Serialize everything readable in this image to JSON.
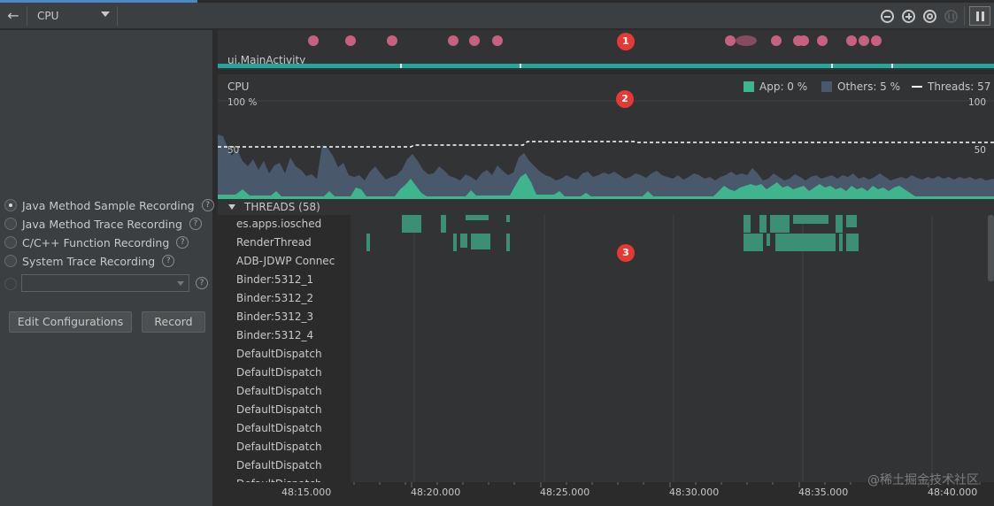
{
  "toolbar": {
    "back_icon": "arrow-left-icon",
    "profiler_select": "CPU",
    "zoom_out_icon": "minus-circle-icon",
    "zoom_in_icon": "plus-circle-icon",
    "reset_zoom_icon": "reset-circle-icon",
    "live_icon": "pause-circle-icon",
    "pause_icon": "pause-icon"
  },
  "left_panel": {
    "recording_options": [
      {
        "label": "Java Method Sample Recording",
        "selected": true
      },
      {
        "label": "Java Method Trace Recording",
        "selected": false
      },
      {
        "label": "C/C++ Function Recording",
        "selected": false
      },
      {
        "label": "System Trace Recording",
        "selected": false
      }
    ],
    "custom_config_value": "",
    "help_glyph": "?",
    "edit_configurations_label": "Edit Configurations",
    "record_label": "Record"
  },
  "event_lane": {
    "activity": "ui.MainActivity",
    "colors": {
      "event_dot": "#c8607f",
      "activity_bar": "#26a69a"
    }
  },
  "cpu": {
    "title": "CPU",
    "legend_app": "App: 0 %",
    "legend_others": "Others: 5 %",
    "legend_threads": "Threads: 57",
    "axis_top_left": "100 %",
    "axis_top_right": "100",
    "axis_mid_left": "50",
    "axis_mid_right": "50",
    "colors": {
      "app": "#3fb58d",
      "others": "#49586b",
      "threads": "#ffffff"
    }
  },
  "threads": {
    "header": "THREADS (58)",
    "names": [
      "es.apps.iosched",
      "RenderThread",
      "ADB-JDWP Connec",
      "Binder:5312_1",
      "Binder:5312_2",
      "Binder:5312_3",
      "Binder:5312_4",
      "DefaultDispatch",
      "DefaultDispatch",
      "DefaultDispatch",
      "DefaultDispatch",
      "DefaultDispatch",
      "DefaultDispatch",
      "DefaultDispatch",
      "DefaultDispatch"
    ],
    "colors": {
      "running": "#3a8f74"
    }
  },
  "time_axis": {
    "labels": [
      "48:15.000",
      "48:20.000",
      "48:25.000",
      "48:30.000",
      "48:35.000",
      "48:40.000"
    ]
  },
  "annotations": {
    "m1": "1",
    "m2": "2",
    "m3": "3"
  },
  "watermark": "@稀土掘金技术社区"
}
